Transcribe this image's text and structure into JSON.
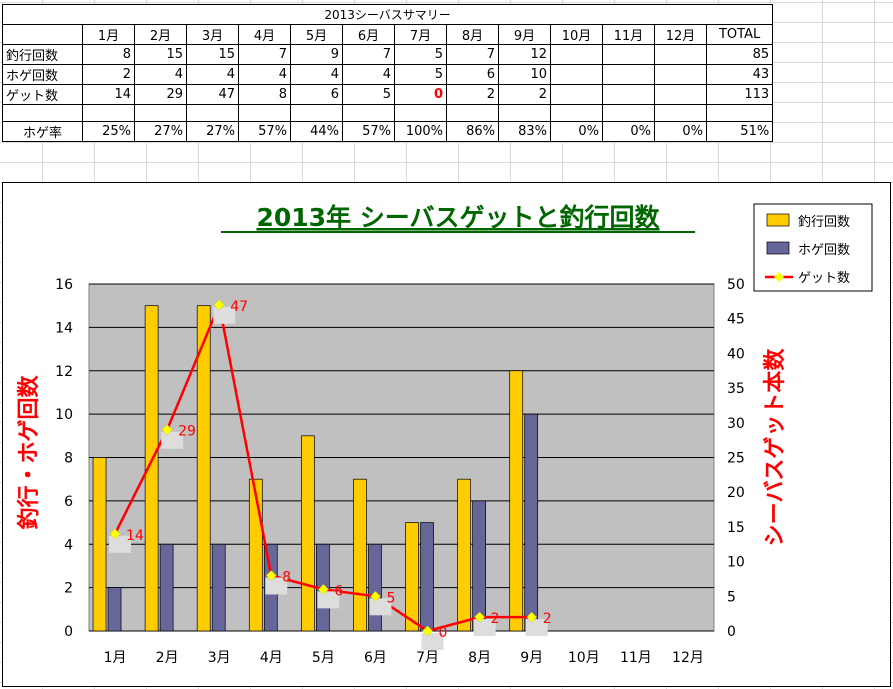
{
  "summary": {
    "title": "2013シーバスサマリー",
    "months": [
      "1月",
      "2月",
      "3月",
      "4月",
      "5月",
      "6月",
      "7月",
      "8月",
      "9月",
      "10月",
      "11月",
      "12月"
    ],
    "total_header": "TOTAL",
    "rows": [
      {
        "label": "釣行回数",
        "values": [
          "8",
          "15",
          "15",
          "7",
          "9",
          "7",
          "5",
          "7",
          "12",
          "",
          "",
          ""
        ],
        "total": "85"
      },
      {
        "label": "ホゲ回数",
        "values": [
          "2",
          "4",
          "4",
          "4",
          "4",
          "4",
          "5",
          "6",
          "10",
          "",
          "",
          ""
        ],
        "total": "43"
      },
      {
        "label": "ゲット数",
        "values": [
          "14",
          "29",
          "47",
          "8",
          "6",
          "5",
          "0",
          "2",
          "2",
          "",
          "",
          ""
        ],
        "total": "113"
      }
    ],
    "rate": {
      "label": "ホゲ率",
      "values": [
        "25%",
        "27%",
        "27%",
        "57%",
        "44%",
        "57%",
        "100%",
        "86%",
        "83%",
        "0%",
        "0%",
        "0%"
      ],
      "total": "51%"
    }
  },
  "chart_data": {
    "type": "bar",
    "title": "2013年 シーバスゲットと釣行回数",
    "categories": [
      "1月",
      "2月",
      "3月",
      "4月",
      "5月",
      "6月",
      "7月",
      "8月",
      "9月",
      "10月",
      "11月",
      "12月"
    ],
    "series": [
      {
        "name": "釣行回数",
        "type": "bar",
        "axis": "left",
        "color": "#ffcc00",
        "values": [
          8,
          15,
          15,
          7,
          9,
          7,
          5,
          7,
          12,
          null,
          null,
          null
        ]
      },
      {
        "name": "ホゲ回数",
        "type": "bar",
        "axis": "left",
        "color": "#666699",
        "values": [
          2,
          4,
          4,
          4,
          4,
          4,
          5,
          6,
          10,
          null,
          null,
          null
        ]
      },
      {
        "name": "ゲット数",
        "type": "line",
        "axis": "right",
        "color": "#ff0000",
        "marker_color": "#ffff00",
        "values": [
          14,
          29,
          47,
          8,
          6,
          5,
          0,
          2,
          2,
          null,
          null,
          null
        ]
      }
    ],
    "ylabel": "釣行・ホゲ回数",
    "y2label": "シーバスゲット本数",
    "ylim": [
      0,
      16
    ],
    "y2lim": [
      0,
      50
    ],
    "yticks": [
      0,
      2,
      4,
      6,
      8,
      10,
      12,
      14,
      16
    ],
    "y2ticks": [
      0,
      5,
      10,
      15,
      20,
      25,
      30,
      35,
      40,
      45,
      50
    ],
    "grid": true,
    "legend": "top-right",
    "plot_bg": "#c0c0c0"
  }
}
